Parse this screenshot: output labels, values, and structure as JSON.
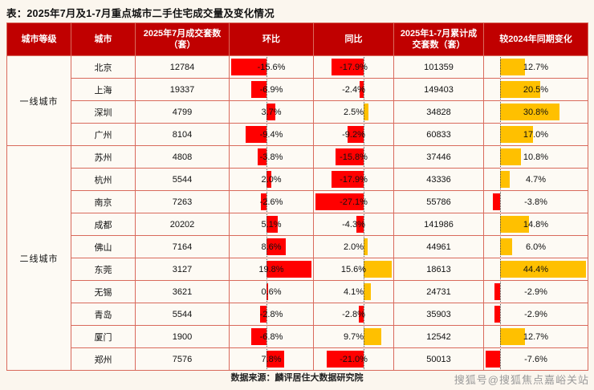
{
  "page": {
    "title": "表：2025年7月及1-7月重点城市二手住宅成交量及变化情况",
    "source": "数据来源：麟评居住大数据研究院",
    "watermark": "搜狐号@搜狐焦点嘉峪关站"
  },
  "colors": {
    "header_bg": "#c00000",
    "header_text": "#ffffff",
    "grid_border": "#d96a5c",
    "bar_negative": "#ff0000",
    "bar_positive": "#ffc000",
    "page_bg": "#fbf6ee"
  },
  "chart_data": {
    "type": "table",
    "title": "2025年7月及1-7月重点城市二手住宅成交量及变化情况",
    "columns": [
      "城市等级",
      "城市",
      "2025年7月成交套数（套）",
      "环比",
      "同比",
      "2025年1-7月累计成交套数（套）",
      "较2024年同期变化"
    ],
    "bar_columns": {
      "mom_pct": {
        "neg_color": "#ff0000",
        "pos_color": "#ff0000"
      },
      "yoy_pct": {
        "neg_color": "#ff0000",
        "pos_color": "#ffc000"
      },
      "vs_2024_pct": {
        "neg_color": "#ff0000",
        "pos_color": "#ffc000"
      }
    },
    "groups": [
      {
        "tier": "一线城市",
        "rows": [
          {
            "city": "北京",
            "jul_2025_units": 12784,
            "mom_pct": -15.6,
            "yoy_pct": -17.9,
            "cum_jan_jul_units": 101359,
            "vs_2024_pct": 12.7
          },
          {
            "city": "上海",
            "jul_2025_units": 19337,
            "mom_pct": -6.9,
            "yoy_pct": -2.4,
            "cum_jan_jul_units": 149403,
            "vs_2024_pct": 20.5
          },
          {
            "city": "深圳",
            "jul_2025_units": 4799,
            "mom_pct": 3.7,
            "yoy_pct": 2.5,
            "cum_jan_jul_units": 34828,
            "vs_2024_pct": 30.8
          },
          {
            "city": "广州",
            "jul_2025_units": 8104,
            "mom_pct": -9.4,
            "yoy_pct": -9.2,
            "cum_jan_jul_units": 60833,
            "vs_2024_pct": 17.0
          }
        ]
      },
      {
        "tier": "二线城市",
        "rows": [
          {
            "city": "苏州",
            "jul_2025_units": 4808,
            "mom_pct": -3.8,
            "yoy_pct": -15.8,
            "cum_jan_jul_units": 37446,
            "vs_2024_pct": 10.8
          },
          {
            "city": "杭州",
            "jul_2025_units": 5544,
            "mom_pct": 2.0,
            "yoy_pct": -17.9,
            "cum_jan_jul_units": 43336,
            "vs_2024_pct": 4.7
          },
          {
            "city": "南京",
            "jul_2025_units": 7263,
            "mom_pct": -2.6,
            "yoy_pct": -27.1,
            "cum_jan_jul_units": 55786,
            "vs_2024_pct": -3.8
          },
          {
            "city": "成都",
            "jul_2025_units": 20202,
            "mom_pct": 5.1,
            "yoy_pct": -4.3,
            "cum_jan_jul_units": 141986,
            "vs_2024_pct": 14.8
          },
          {
            "city": "佛山",
            "jul_2025_units": 7164,
            "mom_pct": 8.6,
            "yoy_pct": 2.0,
            "cum_jan_jul_units": 44961,
            "vs_2024_pct": 6.0
          },
          {
            "city": "东莞",
            "jul_2025_units": 3127,
            "mom_pct": 19.8,
            "yoy_pct": 15.6,
            "cum_jan_jul_units": 18613,
            "vs_2024_pct": 44.4
          },
          {
            "city": "无锡",
            "jul_2025_units": 3621,
            "mom_pct": 0.6,
            "yoy_pct": 4.1,
            "cum_jan_jul_units": 24731,
            "vs_2024_pct": -2.9
          },
          {
            "city": "青岛",
            "jul_2025_units": 5544,
            "mom_pct": -2.8,
            "yoy_pct": -2.8,
            "cum_jan_jul_units": 35903,
            "vs_2024_pct": -2.9
          },
          {
            "city": "厦门",
            "jul_2025_units": 1900,
            "mom_pct": -6.8,
            "yoy_pct": 9.7,
            "cum_jan_jul_units": 12542,
            "vs_2024_pct": 12.7
          },
          {
            "city": "郑州",
            "jul_2025_units": 7576,
            "mom_pct": 7.8,
            "yoy_pct": -21.0,
            "cum_jan_jul_units": 50013,
            "vs_2024_pct": -7.6
          }
        ]
      }
    ]
  }
}
